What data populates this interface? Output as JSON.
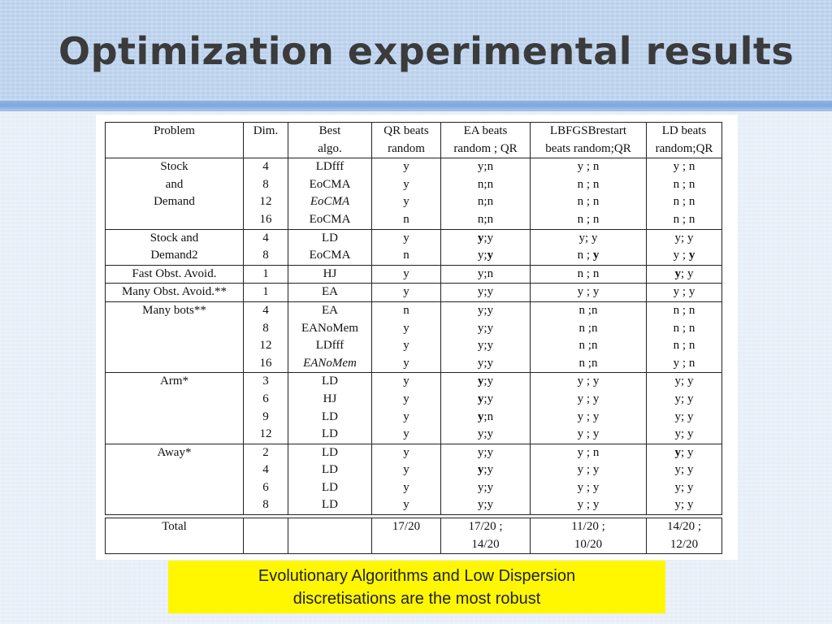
{
  "title": "Optimization experimental results",
  "colors": {
    "header": "#b9d0ec",
    "background": "#e7eef8",
    "caption_bg": "#fff700"
  },
  "table": {
    "headers": [
      [
        "Problem",
        ""
      ],
      [
        "Dim.",
        ""
      ],
      [
        "Best",
        "algo."
      ],
      [
        "QR beats",
        "random"
      ],
      [
        "EA beats",
        "random ; QR"
      ],
      [
        "LBFGSBrestart",
        "beats random;QR"
      ],
      [
        "LD beats",
        "random;QR"
      ]
    ],
    "groups": [
      {
        "problem": [
          "Stock",
          "and",
          "Demand"
        ],
        "rows": [
          [
            "4",
            "LDfff",
            "y",
            "y;n",
            "y ; n",
            "y ; n"
          ],
          [
            "8",
            "EoCMA",
            "y",
            "n;n",
            "n ; n",
            "n ; n"
          ],
          [
            "12",
            "EoCMA",
            "y",
            "n;n",
            "n ; n",
            "n ; n"
          ],
          [
            "16",
            "EoCMA",
            "n",
            "n;n",
            "n ; n",
            "n ; n"
          ]
        ]
      },
      {
        "problem": [
          "Stock and",
          "Demand2"
        ],
        "rows": [
          [
            "4",
            "LD",
            "y",
            "y;y",
            "y; y",
            "y; y"
          ],
          [
            "8",
            "EoCMA",
            "n",
            "y;y",
            "n ; y",
            "y ; y"
          ]
        ]
      },
      {
        "problem": [
          "Fast Obst. Avoid."
        ],
        "rows": [
          [
            "1",
            "HJ",
            "y",
            "y;n",
            "n ; n",
            "y; y"
          ]
        ]
      },
      {
        "problem": [
          "Many Obst. Avoid.**"
        ],
        "rows": [
          [
            "1",
            "EA",
            "y",
            "y;y",
            "y ; y",
            "y ; y"
          ]
        ]
      },
      {
        "problem": [
          "Many bots**"
        ],
        "rows": [
          [
            "4",
            "EA",
            "n",
            "y;y",
            "n ;n",
            "n ; n"
          ],
          [
            "8",
            "EANoMem",
            "y",
            "y;y",
            "n ;n",
            "n ; n"
          ],
          [
            "12",
            "LDfff",
            "y",
            "y;y",
            "n ;n",
            "n ; n"
          ],
          [
            "16",
            "EANoMem",
            "y",
            "y;y",
            "n ;n",
            "y ; n"
          ]
        ]
      },
      {
        "problem": [
          "Arm*"
        ],
        "rows": [
          [
            "3",
            "LD",
            "y",
            "y;y",
            "y ; y",
            "y; y"
          ],
          [
            "6",
            "HJ",
            "y",
            "y;y",
            "y ; y",
            "y; y"
          ],
          [
            "9",
            "LD",
            "y",
            "y;n",
            "y ; y",
            "y; y"
          ],
          [
            "12",
            "LD",
            "y",
            "y;y",
            "y ; y",
            "y; y"
          ]
        ]
      },
      {
        "problem": [
          "Away*"
        ],
        "rows": [
          [
            "2",
            "LD",
            "y",
            "y;y",
            "y ; n",
            "y; y"
          ],
          [
            "4",
            "LD",
            "y",
            "y;y",
            "y ; y",
            "y; y"
          ],
          [
            "6",
            "LD",
            "y",
            "y;y",
            "y ; y",
            "y; y"
          ],
          [
            "8",
            "LD",
            "y",
            "y;y",
            "y ; y",
            "y; y"
          ]
        ]
      }
    ],
    "total": {
      "label": "Total",
      "dim": "",
      "best": "",
      "qr": "17/20",
      "ea": [
        "17/20 ;",
        "14/20"
      ],
      "lbfgsb": [
        "11/20 ;",
        "10/20"
      ],
      "ld": [
        "14/20 ;",
        "12/20"
      ]
    }
  },
  "caption": {
    "line1": "Evolutionary Algorithms and Low Dispersion",
    "line2": "discretisations are the most robust"
  }
}
